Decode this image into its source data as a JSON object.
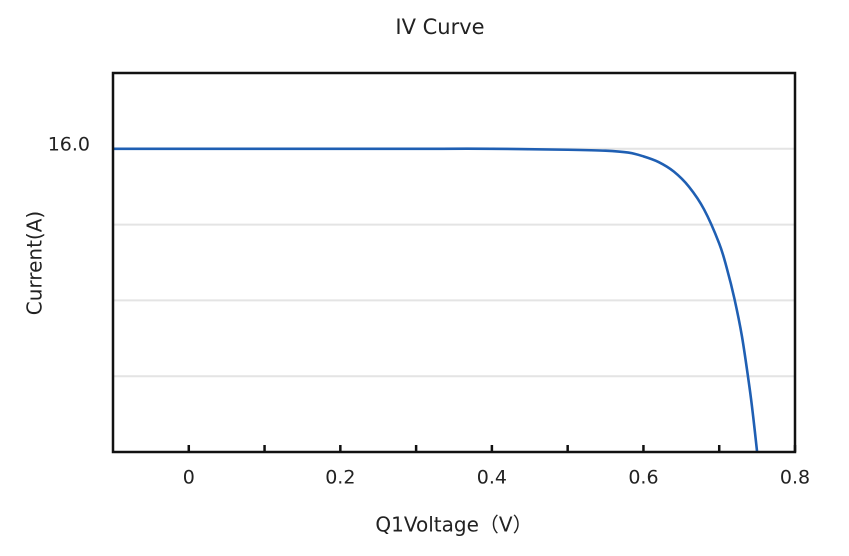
{
  "chart_data": {
    "type": "line",
    "title": "IV Curve",
    "x_label": "Q1Voltage（V）",
    "y_label": "Current(A)",
    "x": [
      -0.1,
      0,
      0.1,
      0.2,
      0.3,
      0.4,
      0.5,
      0.55,
      0.58,
      0.6,
      0.62,
      0.64,
      0.66,
      0.68,
      0.7,
      0.71,
      0.72,
      0.73,
      0.74,
      0.745,
      0.75
    ],
    "series": [
      {
        "name": "Current",
        "color": "#1f5fb3",
        "values": [
          16,
          16,
          16,
          16,
          16,
          16,
          15.95,
          15.9,
          15.8,
          15.6,
          15.3,
          14.8,
          14.0,
          12.8,
          11.0,
          9.7,
          8.1,
          6.1,
          3.4,
          1.8,
          0
        ]
      }
    ],
    "xlim": [
      -0.1,
      0.8
    ],
    "ylim": [
      0,
      20
    ],
    "xticks": [
      0,
      {
        "value": 0.1,
        "label": null
      },
      0.2,
      {
        "value": 0.3,
        "label": null
      },
      0.4,
      {
        "value": 0.5,
        "label": null
      },
      0.6,
      {
        "value": 0.7,
        "label": null
      },
      0.8
    ],
    "yticks": [
      {
        "value": 4,
        "label": null
      },
      {
        "value": 8,
        "label": null
      },
      {
        "value": 12,
        "label": null
      },
      {
        "value": 16,
        "label": "16.0"
      }
    ],
    "grid": true,
    "legend": false
  }
}
